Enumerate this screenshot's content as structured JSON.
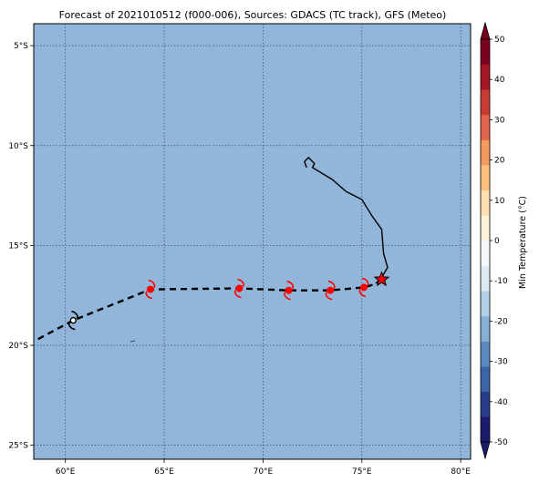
{
  "map": {
    "title": "Forecast of 2021010512 (f000-006), Sources: GDACS (TC track), GFS (Meteo)",
    "lon_range": [
      58.4,
      80.5
    ],
    "lat_range": [
      -25.7,
      -3.9
    ],
    "ocean_color": "#92b6d9",
    "grid": "dotted",
    "lon_ticks": [
      60,
      65,
      70,
      75,
      80
    ],
    "lon_tick_labels": [
      "60°E",
      "65°E",
      "70°E",
      "75°E",
      "80°E"
    ],
    "lat_ticks": [
      -5,
      -10,
      -15,
      -20,
      -25
    ],
    "lat_tick_labels": [
      "5°S",
      "10°S",
      "15°S",
      "20°S",
      "25°S"
    ],
    "past_track": [
      [
        72.2,
        -11.1
      ],
      [
        72.1,
        -10.8
      ],
      [
        72.3,
        -10.6
      ],
      [
        72.6,
        -10.9
      ],
      [
        72.5,
        -11.1
      ],
      [
        73.5,
        -11.7
      ],
      [
        74.2,
        -12.3
      ],
      [
        75.0,
        -12.7
      ],
      [
        75.5,
        -13.5
      ],
      [
        76.0,
        -14.2
      ],
      [
        76.1,
        -15.4
      ],
      [
        76.3,
        -16.1
      ],
      [
        76.0,
        -16.6
      ],
      [
        75.7,
        -16.9
      ]
    ],
    "current_position": [
      76.0,
      -16.7
    ],
    "forecast_track": [
      [
        76.0,
        -16.7
      ],
      [
        75.8,
        -16.9
      ],
      [
        75.1,
        -17.1
      ],
      [
        73.4,
        -17.25
      ],
      [
        71.3,
        -17.25
      ],
      [
        68.8,
        -17.15
      ],
      [
        64.3,
        -17.2
      ],
      [
        60.4,
        -18.75
      ],
      [
        58.6,
        -19.7
      ]
    ],
    "storm_symbols": [
      {
        "lon": 75.1,
        "lat": -17.1,
        "color": "#ff0000"
      },
      {
        "lon": 73.4,
        "lat": -17.25,
        "color": "#ff0000"
      },
      {
        "lon": 71.3,
        "lat": -17.25,
        "color": "#ff0000"
      },
      {
        "lon": 68.8,
        "lat": -17.15,
        "color": "#ff0000"
      },
      {
        "lon": 64.3,
        "lat": -17.2,
        "color": "#ff0000"
      },
      {
        "lon": 60.4,
        "lat": -18.75,
        "color": "#000000"
      }
    ]
  },
  "colorbar": {
    "label": "Min Temperature (°C)",
    "min": -50,
    "max": 50,
    "ticks": [
      50,
      40,
      30,
      20,
      10,
      0,
      -10,
      -20,
      -30,
      -40,
      -50
    ],
    "colors": [
      "#1c1c6e",
      "#283c8c",
      "#3a65a6",
      "#5a8bc0",
      "#86b0d5",
      "#b3d1e6",
      "#dcebf3",
      "#f5f9fb",
      "#fdf3d8",
      "#fde0b0",
      "#fbbf80",
      "#f39a61",
      "#e2644a",
      "#c93a31",
      "#a81527",
      "#7b0020"
    ]
  }
}
